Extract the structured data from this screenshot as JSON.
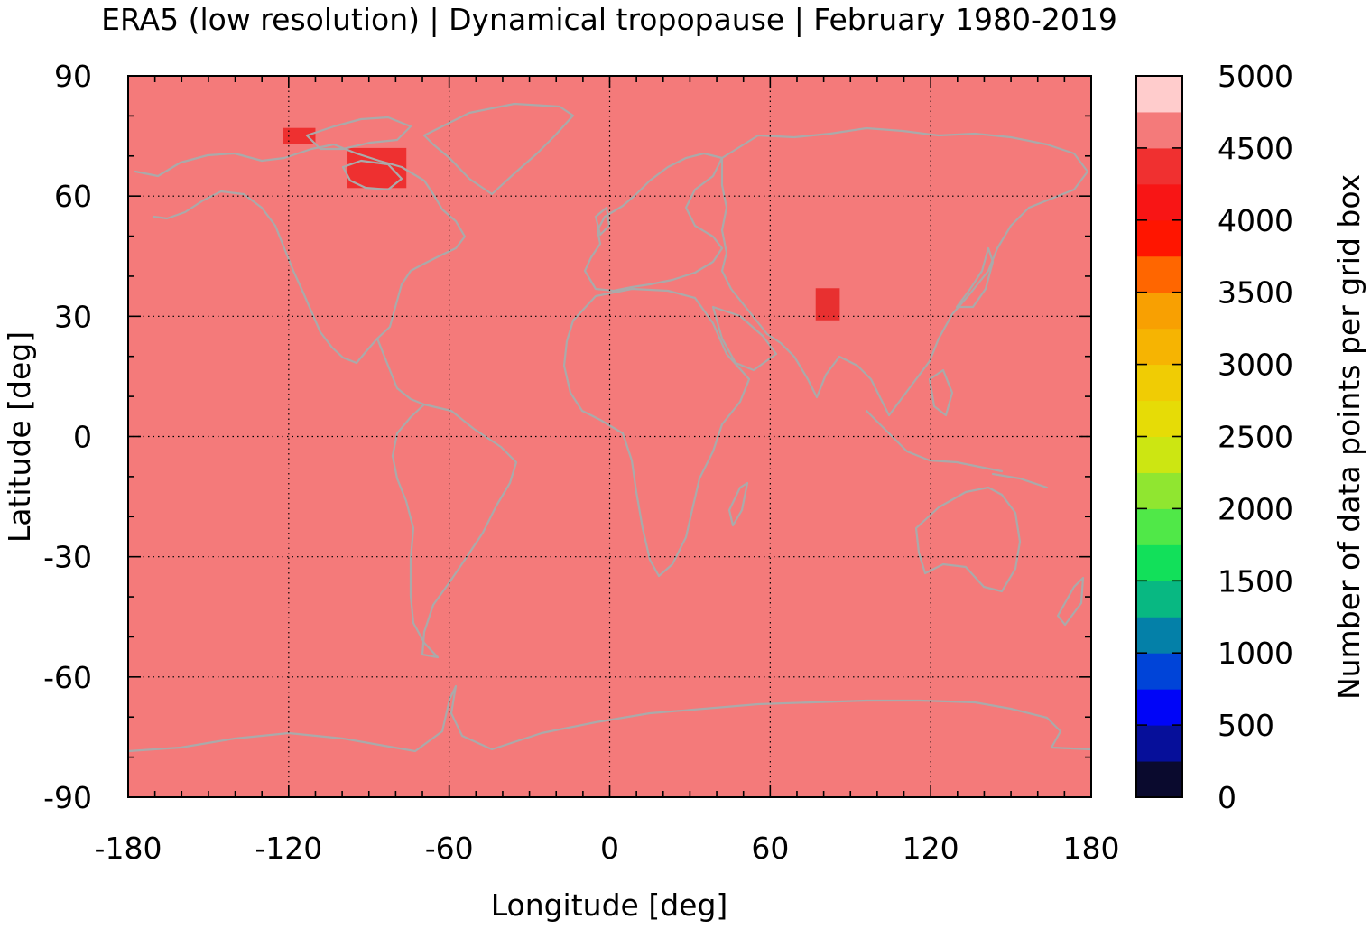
{
  "chart_data": {
    "type": "heatmap",
    "title": "ERA5 (low resolution) | Dynamical tropopause | February 1980-2019",
    "xlabel": "Longitude [deg]",
    "ylabel": "Latitude [deg]",
    "xlim": [
      -180,
      180
    ],
    "ylim": [
      -90,
      90
    ],
    "xticks": [
      "-180",
      "-120",
      "-60",
      "0",
      "60",
      "120",
      "180"
    ],
    "yticks": [
      "90",
      "60",
      "30",
      "0",
      "-30",
      "-60",
      "-90"
    ],
    "grid": true,
    "background_value_color": "#f47a7a",
    "coastline_color": "#aaaaaa",
    "regions": [
      {
        "lon_min": -98,
        "lon_max": -76,
        "lat_min": 62,
        "lat_max": 72,
        "color": "#ee3030"
      },
      {
        "lon_min": -122,
        "lon_max": -110,
        "lat_min": 73,
        "lat_max": 77,
        "color": "#ee3030"
      },
      {
        "lon_min": 77,
        "lon_max": 86,
        "lat_min": 29,
        "lat_max": 37,
        "color": "#e83030"
      }
    ],
    "colorbar": {
      "label": "Number of data points per grid box",
      "range": [
        0,
        5000
      ],
      "step": 250,
      "tick_labels": [
        "0",
        "500",
        "1000",
        "1500",
        "2000",
        "2500",
        "3000",
        "3500",
        "4000",
        "4500",
        "5000"
      ],
      "colors": [
        "#0a0a2e",
        "#060f9a",
        "#0005f8",
        "#0044d8",
        "#0480a8",
        "#08b882",
        "#12e05a",
        "#50e848",
        "#90e630",
        "#cce612",
        "#e6dc06",
        "#f0cc04",
        "#f6b402",
        "#f8a002",
        "#ff6600",
        "#ff1500",
        "#f81515",
        "#f03030",
        "#f47a7a",
        "#ffcccc"
      ]
    }
  }
}
